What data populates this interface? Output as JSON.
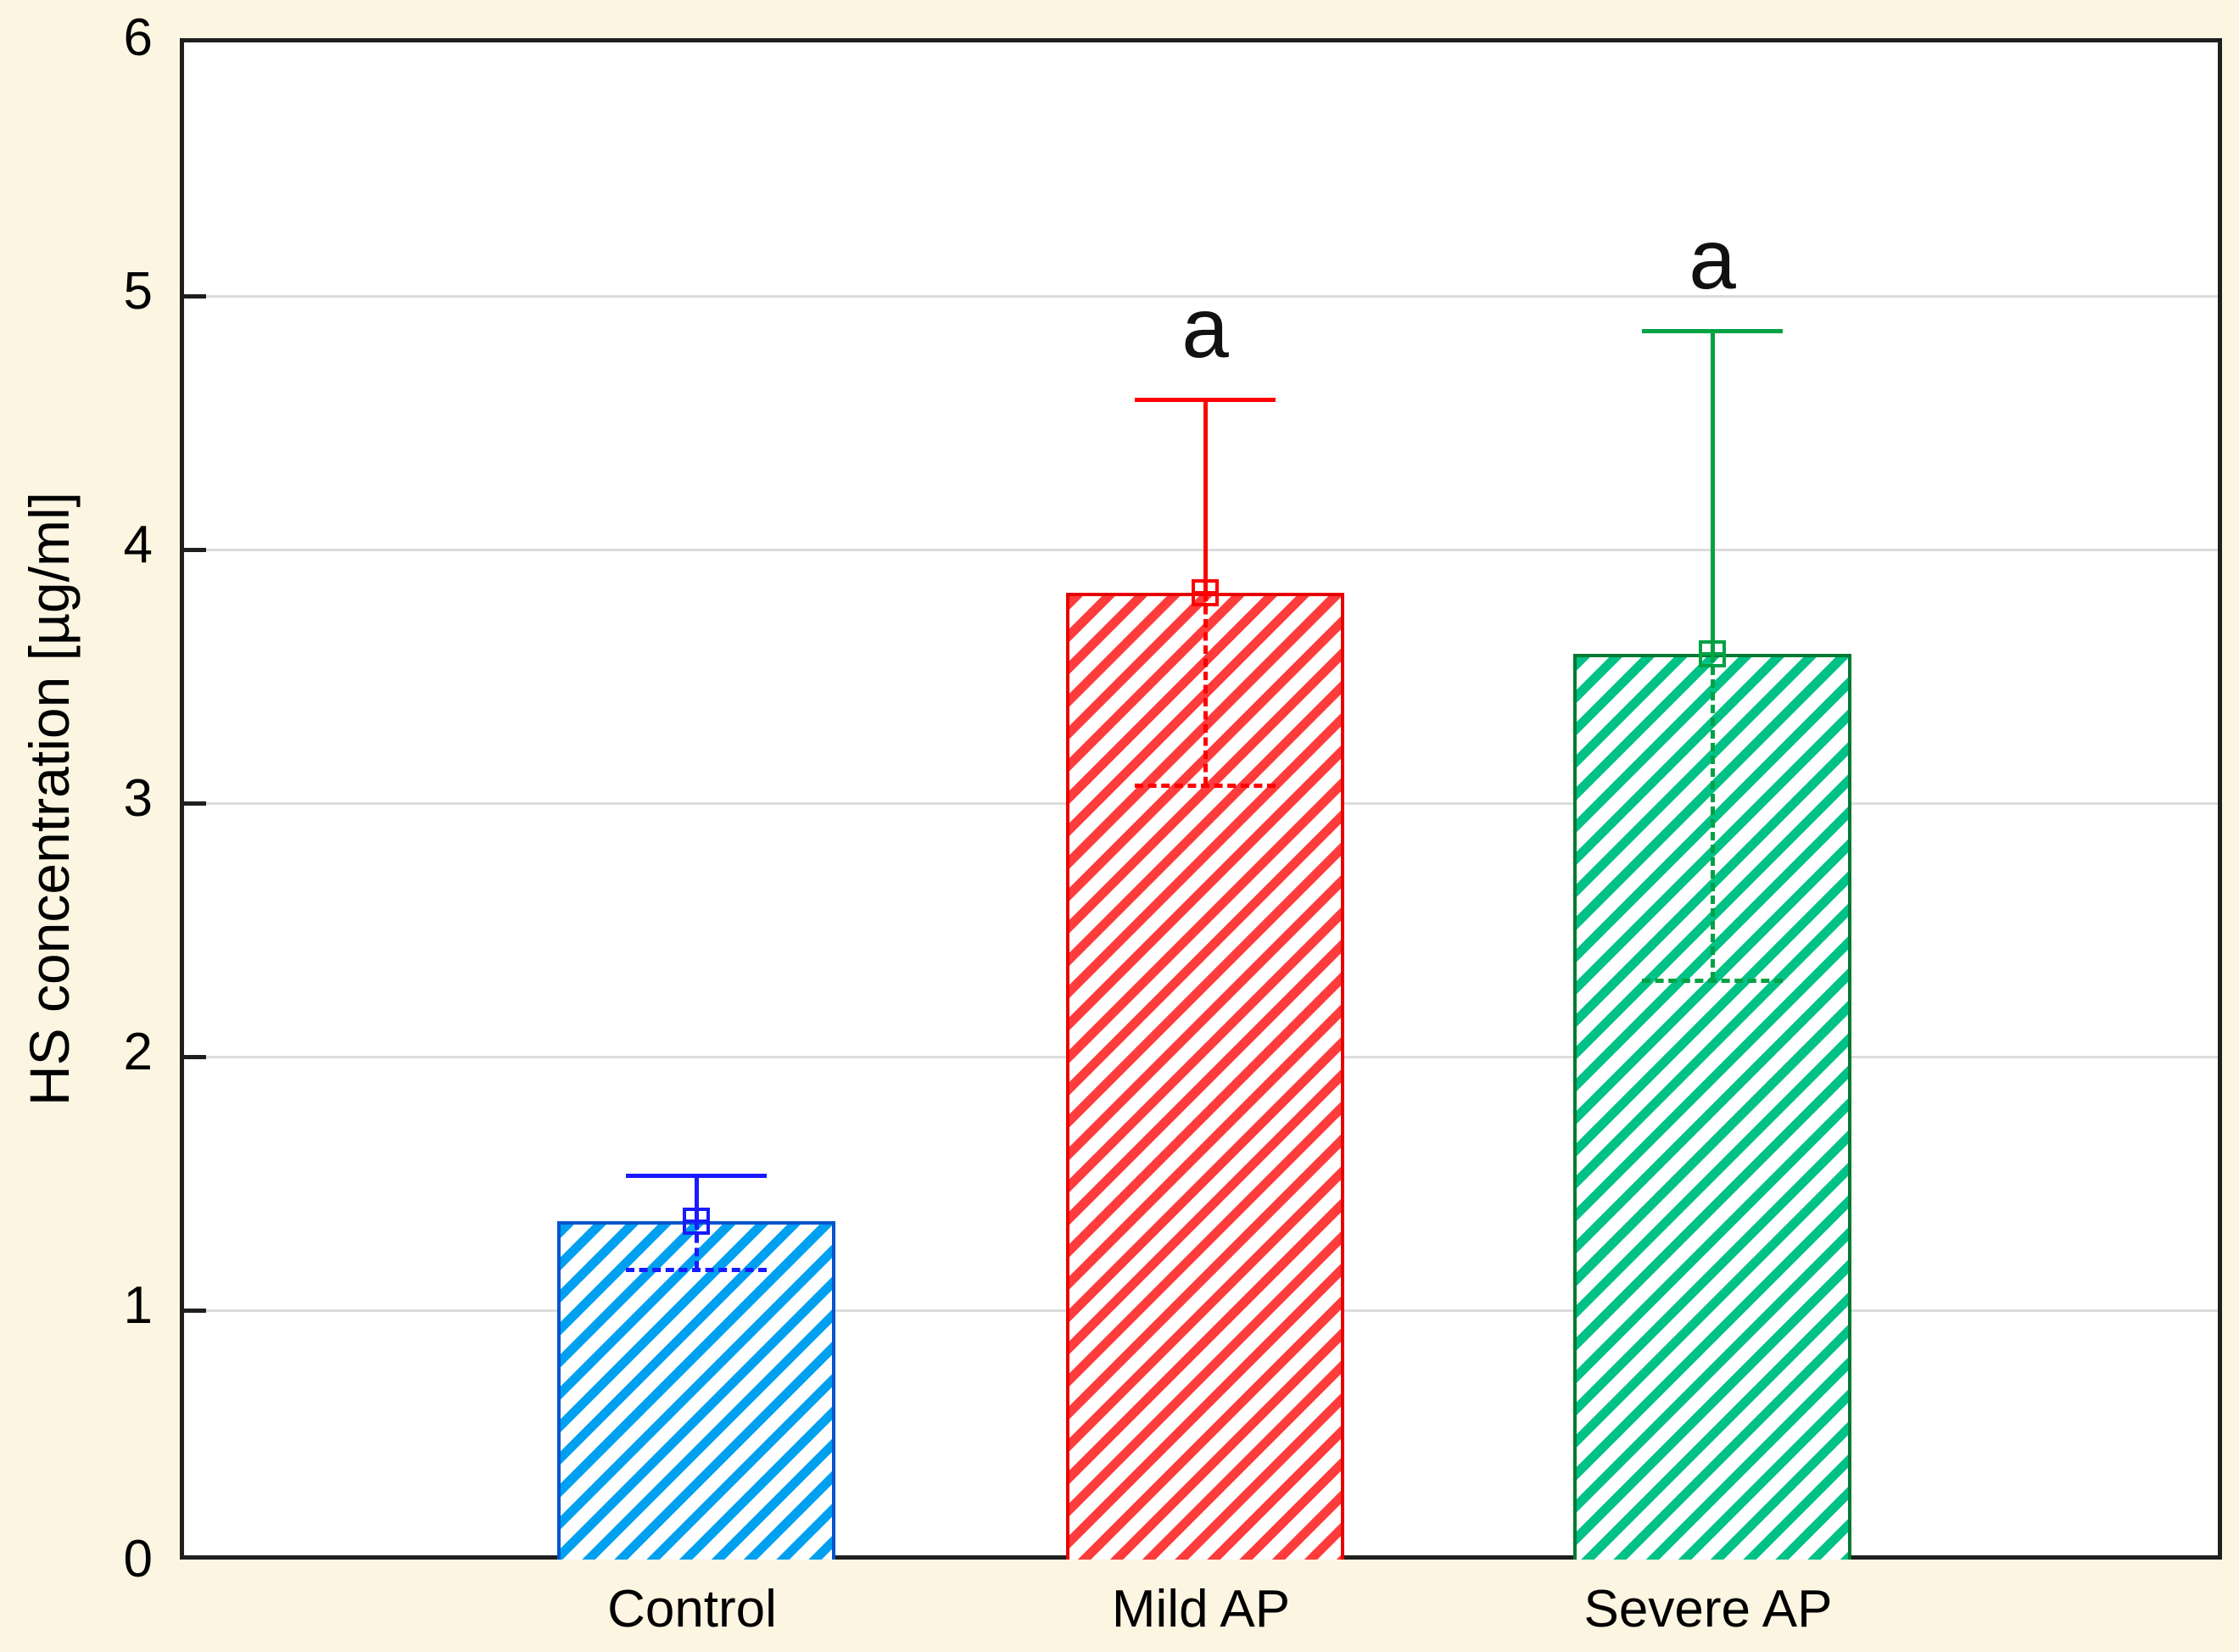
{
  "chart_data": {
    "type": "bar",
    "title": "",
    "xlabel": "",
    "ylabel": "HS concentration [µg/ml]",
    "ylim": [
      0,
      6
    ],
    "y_ticks": [
      "0",
      "1",
      "2",
      "3",
      "4",
      "5",
      "6"
    ],
    "grid": "horizontal-lines-at-integer-values",
    "legend_position": "none",
    "categories": [
      "Control",
      "Mild AP",
      "Severe AP"
    ],
    "series": [
      {
        "name": "Control",
        "mean": 1.35,
        "whisker_low": 1.16,
        "whisker_high": 1.53,
        "significance": "",
        "hatch_color": "#00A0F0",
        "border_color": "#0055CC",
        "error_color": "#1A1AFF"
      },
      {
        "name": "Mild AP",
        "mean": 3.83,
        "whisker_low": 3.07,
        "whisker_high": 4.59,
        "significance": "a",
        "hatch_color": "#FF3C3C",
        "border_color": "#E80000",
        "error_color": "#FF0000"
      },
      {
        "name": "Severe AP",
        "mean": 3.59,
        "whisker_low": 2.3,
        "whisker_high": 4.86,
        "significance": "a",
        "hatch_color": "#00C287",
        "border_color": "#007A32",
        "error_color": "#00A244"
      }
    ],
    "colors": {
      "background": "#FCF5E1",
      "plot_background": "#FFFFFF",
      "grid": "#DCDCDC",
      "axis": "#1F1F1F",
      "text": "#000000"
    },
    "bar_style": "diagonal-hatch-ascending",
    "marker_style": "open-square-with-cross"
  }
}
